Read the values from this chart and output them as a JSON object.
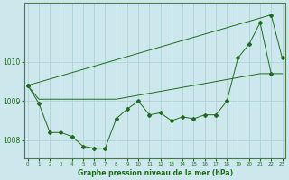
{
  "xlabel": "Graphe pression niveau de la mer (hPa)",
  "background_color": "#cce8ec",
  "grid_color": "#aacdd4",
  "line_color": "#1e6b1e",
  "x_all": [
    0,
    1,
    2,
    3,
    4,
    5,
    6,
    7,
    8,
    9,
    10,
    11,
    12,
    13,
    14,
    15,
    16,
    17,
    18,
    19,
    20,
    21,
    22,
    23
  ],
  "line1_y": [
    1009.4,
    1009.05,
    1009.05,
    1009.05,
    1009.05,
    1009.05,
    1009.05,
    1009.05,
    1009.05,
    1009.1,
    1009.15,
    1009.2,
    1009.25,
    1009.3,
    1009.35,
    1009.4,
    1009.45,
    1009.5,
    1009.55,
    1009.6,
    1009.65,
    1009.7,
    1009.7,
    1009.7
  ],
  "line2_x": [
    0,
    1,
    2,
    3,
    4,
    5,
    6,
    7,
    8,
    9,
    10,
    11,
    12,
    13,
    14,
    15,
    16,
    17,
    18,
    19,
    20,
    21,
    22
  ],
  "line2_y": [
    1009.4,
    1008.95,
    1008.2,
    1008.2,
    1008.1,
    1007.85,
    1007.8,
    1007.8,
    1008.55,
    1008.8,
    1009.0,
    1008.65,
    1008.7,
    1008.5,
    1008.6,
    1008.55,
    1008.65,
    1008.65,
    1009.0,
    1010.1,
    1010.45,
    1011.0,
    1009.7
  ],
  "line3_x": [
    0,
    22,
    23
  ],
  "line3_y": [
    1009.4,
    1011.2,
    1010.1
  ],
  "ylim": [
    1007.55,
    1011.5
  ],
  "yticks": [
    1008,
    1009,
    1010
  ],
  "xlim": [
    -0.3,
    23.3
  ],
  "xticks": [
    0,
    1,
    2,
    3,
    4,
    5,
    6,
    7,
    8,
    9,
    10,
    11,
    12,
    13,
    14,
    15,
    16,
    17,
    18,
    19,
    20,
    21,
    22,
    23
  ]
}
